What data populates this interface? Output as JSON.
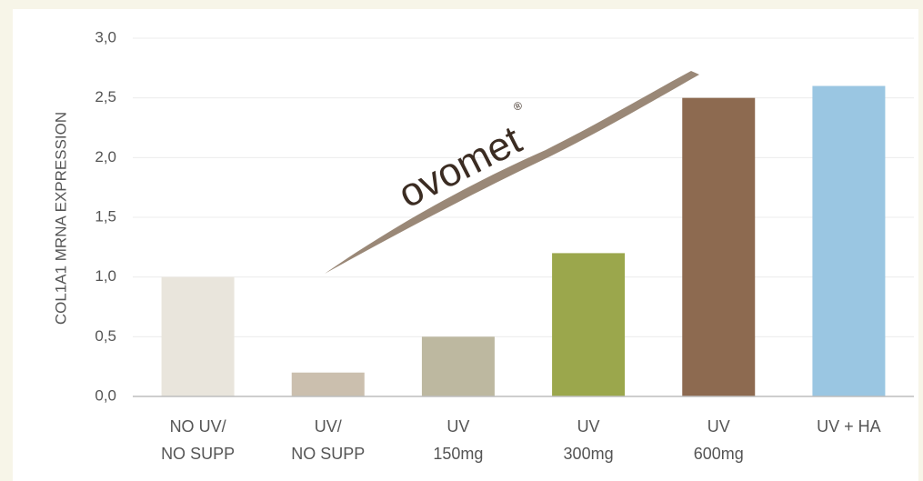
{
  "chart_data": {
    "type": "bar",
    "ylabel": "COL1A1 MRNA EXPRESSION",
    "categories": [
      [
        "NO UV/",
        "NO SUPP"
      ],
      [
        "UV/",
        "NO SUPP"
      ],
      [
        "UV",
        "150mg"
      ],
      [
        "UV",
        "300mg"
      ],
      [
        "UV",
        "600mg"
      ],
      [
        "UV + HA"
      ]
    ],
    "values": [
      1.0,
      0.2,
      0.5,
      1.2,
      2.5,
      2.6
    ],
    "colors": [
      "#e9e5dc",
      "#cbbfae",
      "#bdb8a0",
      "#9ba74c",
      "#8d6a50",
      "#9ac6e2"
    ],
    "ylim": [
      0,
      3
    ],
    "yticks": [
      {
        "value": 0,
        "label": "0,0"
      },
      {
        "value": 0.5,
        "label": "0,5"
      },
      {
        "value": 1,
        "label": "1,0"
      },
      {
        "value": 1.5,
        "label": "1,5"
      },
      {
        "value": 2,
        "label": "2,0"
      },
      {
        "value": 2.5,
        "label": "2,5"
      },
      {
        "value": 3,
        "label": "3,0"
      }
    ],
    "grid": true,
    "logo": {
      "text": "ovomet",
      "mark": "®"
    }
  }
}
